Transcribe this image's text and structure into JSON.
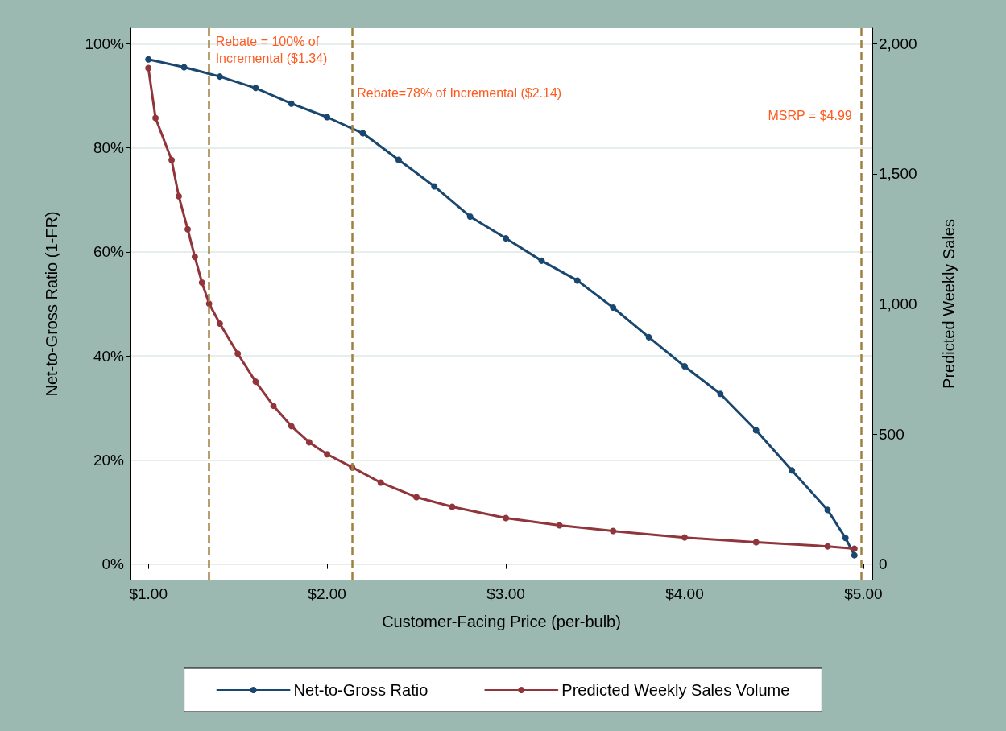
{
  "chart_data": {
    "type": "line",
    "xlabel": "Customer-Facing Price (per-bulb)",
    "ylabel": "Net-to-Gross Ratio (1-FR)",
    "y2label": "Predicted Weekly Sales",
    "xlim": [
      0.9,
      5.05
    ],
    "xticks": [
      {
        "value": 1,
        "label": "$1.00"
      },
      {
        "value": 2,
        "label": "$2.00"
      },
      {
        "value": 3,
        "label": "$3.00"
      },
      {
        "value": 4,
        "label": "$4.00"
      },
      {
        "value": 5,
        "label": "$5.00"
      }
    ],
    "ylim": [
      -3,
      103
    ],
    "yticks": [
      {
        "value": 0,
        "label": "0%"
      },
      {
        "value": 20,
        "label": "20%"
      },
      {
        "value": 40,
        "label": "40%"
      },
      {
        "value": 60,
        "label": "60%"
      },
      {
        "value": 80,
        "label": "80%"
      },
      {
        "value": 100,
        "label": "100%"
      }
    ],
    "y2lim": [
      -60,
      2060
    ],
    "y2ticks": [
      0,
      500,
      {
        "value": 1000,
        "label": "1,000"
      },
      {
        "value": 1500,
        "label": "1,500"
      },
      {
        "value": 2000,
        "label": "2,000"
      }
    ],
    "grid": "y",
    "legend": "bottom",
    "marker": "circle",
    "line_style": "solid",
    "series": [
      {
        "name": "Net-to-Gross Ratio",
        "color": "#1a476f",
        "x": [
          1.0,
          1.2,
          1.4,
          1.6,
          1.8,
          2.0,
          2.2,
          2.4,
          2.6,
          2.8,
          3.0,
          3.2,
          3.4,
          3.6,
          3.8,
          4.0,
          4.2,
          4.4,
          4.6,
          4.8,
          4.9,
          4.95
        ],
        "values": [
          97,
          95.5,
          93.7,
          91.5,
          88.5,
          85.9,
          82.8,
          77.7,
          72.6,
          66.8,
          62.6,
          58.3,
          54.5,
          49.3,
          43.6,
          38,
          32.7,
          25.7,
          18,
          10.4,
          5,
          1.7
        ]
      },
      {
        "name": "Predicted Weekly Sales Volume",
        "color": "#90353b",
        "axis": "y2",
        "x": [
          1.0,
          1.04,
          1.13,
          1.17,
          1.22,
          1.26,
          1.3,
          1.34,
          1.4,
          1.5,
          1.6,
          1.7,
          1.8,
          1.9,
          2.0,
          2.14,
          2.3,
          2.5,
          2.7,
          3.0,
          3.3,
          3.6,
          4.0,
          4.4,
          4.8,
          4.95
        ],
        "values": [
          1907,
          1715,
          1553,
          1414,
          1287,
          1181,
          1082,
          1001,
          924,
          809,
          701,
          608,
          530,
          468,
          422,
          372,
          313,
          257,
          220,
          177,
          149,
          127,
          102,
          84,
          68,
          59
        ]
      }
    ],
    "ref_lines": [
      {
        "axis": "x",
        "value": 1.34,
        "label": "Rebate = 100% of\nIncremental ($1.34)",
        "color": "#a08040",
        "line_style": "dashed"
      },
      {
        "axis": "x",
        "value": 2.14,
        "label": "Rebate=78% of Incremental ($2.14)",
        "color": "#a08040",
        "line_style": "dashed"
      },
      {
        "axis": "x",
        "value": 4.99,
        "label": "MSRP = $4.99",
        "color": "#a08040",
        "line_style": "dashed"
      }
    ]
  }
}
